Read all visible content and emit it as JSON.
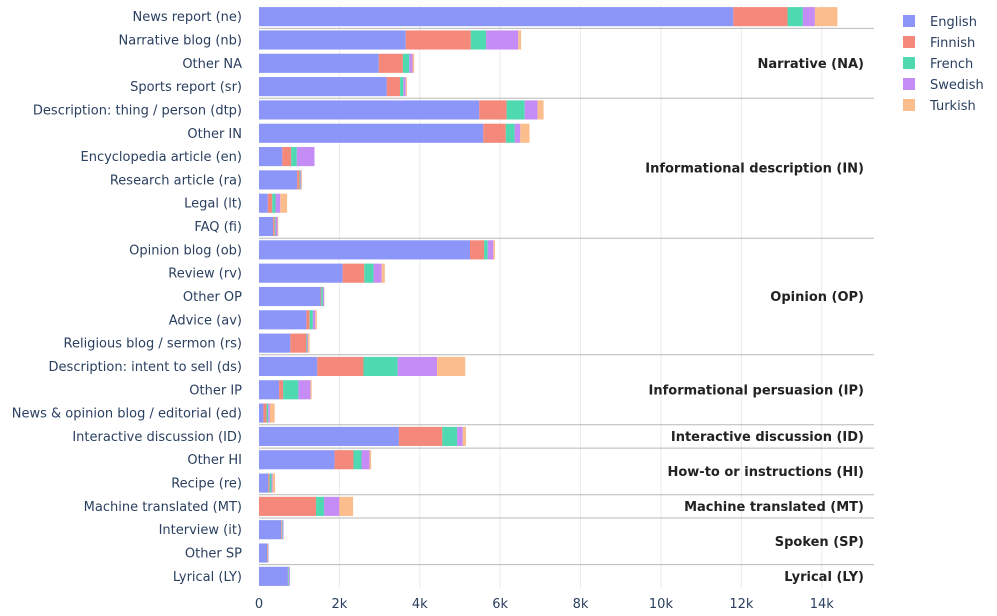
{
  "chart_data": {
    "type": "bar",
    "orientation": "horizontal",
    "barmode": "stack",
    "categories": [
      "News report (ne)",
      "Narrative blog (nb)",
      "Other NA",
      "Sports report (sr)",
      "Description: thing / person (dtp)",
      "Other IN",
      "Encyclopedia article (en)",
      "Research article (ra)",
      "Legal (lt)",
      "FAQ (fi)",
      "Opinion blog (ob)",
      "Review (rv)",
      "Other OP",
      "Advice (av)",
      "Religious blog / sermon (rs)",
      "Description: intent to sell (ds)",
      "Other IP",
      "News & opinion blog / editorial (ed)",
      "Interactive discussion (ID)",
      "Other HI",
      "Recipe (re)",
      "Machine translated (MT)",
      "Interview (it)",
      "Other SP",
      "Lyrical (LY)"
    ],
    "series": [
      {
        "name": "English",
        "color": "#8c96f8",
        "values": [
          11800,
          3650,
          2980,
          3180,
          5480,
          5580,
          580,
          950,
          220,
          350,
          5250,
          2080,
          1530,
          1180,
          780,
          1450,
          500,
          110,
          3480,
          1880,
          230,
          0,
          550,
          200,
          720
        ]
      },
      {
        "name": "Finnish",
        "color": "#f4887a",
        "values": [
          1350,
          1620,
          600,
          330,
          680,
          560,
          220,
          60,
          110,
          40,
          350,
          540,
          20,
          80,
          400,
          1150,
          100,
          80,
          1080,
          470,
          30,
          1420,
          20,
          20,
          10
        ]
      },
      {
        "name": "French",
        "color": "#4fd9b0",
        "values": [
          380,
          380,
          160,
          80,
          450,
          220,
          140,
          20,
          80,
          20,
          90,
          230,
          40,
          80,
          20,
          850,
          380,
          40,
          370,
          200,
          50,
          200,
          20,
          10,
          20
        ]
      },
      {
        "name": "Swedish",
        "color": "#c48cf4",
        "values": [
          300,
          800,
          80,
          60,
          320,
          140,
          440,
          20,
          120,
          50,
          140,
          200,
          30,
          60,
          20,
          980,
          300,
          40,
          140,
          200,
          30,
          380,
          20,
          10,
          20
        ]
      },
      {
        "name": "Turkish",
        "color": "#fcbd8d",
        "values": [
          560,
          70,
          40,
          30,
          150,
          230,
          0,
          20,
          170,
          20,
          40,
          80,
          10,
          40,
          40,
          700,
          30,
          120,
          80,
          40,
          60,
          340,
          0,
          0,
          0
        ]
      }
    ],
    "groups": [
      {
        "label": "Narrative (NA)",
        "start": 1,
        "end": 4
      },
      {
        "label": "Informational description (IN)",
        "start": 4,
        "end": 10
      },
      {
        "label": "Opinion (OP)",
        "start": 10,
        "end": 15
      },
      {
        "label": "Informational persuasion (IP)",
        "start": 15,
        "end": 18
      },
      {
        "label": "Interactive discussion (ID)",
        "start": 18,
        "end": 19
      },
      {
        "label": "How-to or instructions (HI)",
        "start": 19,
        "end": 21
      },
      {
        "label": "Machine translated (MT)",
        "start": 21,
        "end": 22
      },
      {
        "label": "Spoken (SP)",
        "start": 22,
        "end": 24
      },
      {
        "label": "Lyrical (LY)",
        "start": 24,
        "end": 25
      }
    ],
    "xticks": [
      0,
      2000,
      4000,
      6000,
      8000,
      10000,
      12000,
      14000
    ],
    "xtick_labels": [
      "0",
      "2k",
      "4k",
      "6k",
      "8k",
      "10k",
      "12k",
      "14k"
    ],
    "xlim": [
      0,
      15300
    ],
    "grid": true,
    "legend_position": "top-right",
    "xlabel": "",
    "ylabel": "",
    "title": ""
  }
}
